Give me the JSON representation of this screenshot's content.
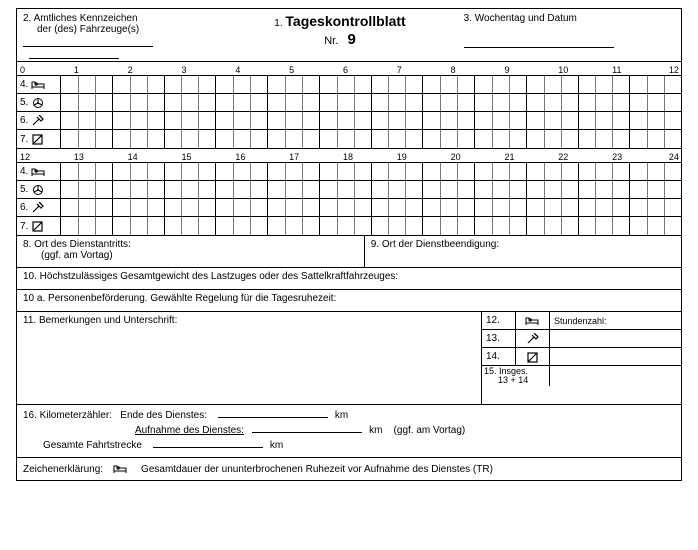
{
  "header": {
    "field2_line1": "2. Amtliches Kennzeichen",
    "field2_line2": "der (des) Fahrzeuge(s)",
    "title_prefix": "1.",
    "title": "Tageskontrollblatt",
    "nr_label": "Nr.",
    "nr_value": "9",
    "field3": "3. Wochentag und Datum"
  },
  "scale_top": [
    "0",
    "1",
    "2",
    "3",
    "4",
    "5",
    "6",
    "7",
    "8",
    "9",
    "10",
    "11",
    "12"
  ],
  "scale_bottom": [
    "12",
    "13",
    "14",
    "15",
    "16",
    "17",
    "18",
    "19",
    "20",
    "21",
    "22",
    "23",
    "24"
  ],
  "timeline_rows": [
    {
      "num": "4.",
      "icon": "bed"
    },
    {
      "num": "5.",
      "icon": "steer"
    },
    {
      "num": "6.",
      "icon": "hammer"
    },
    {
      "num": "7.",
      "icon": "box"
    }
  ],
  "fields": {
    "f8_line1": "8.  Ort des Dienstantritts:",
    "f8_line2": "(ggf. am Vortag)",
    "f9": "9. Ort der Dienstbeendigung:",
    "f10": "10.  Höchstzulässiges Gesamtgewicht des Lastzuges oder des Sattelkraftfahrzeuges:",
    "f10a": "10 a. Personenbeförderung. Gewählte Regelung für die Tagesruhezeit:",
    "f11": "11.  Bemerkungen und Unterschrift:"
  },
  "hours_table": {
    "header_label": "Stundenzahl:",
    "rows": [
      {
        "num": "12.",
        "icon": "bed"
      },
      {
        "num": "13.",
        "icon": "hammer"
      },
      {
        "num": "14.",
        "icon": "box"
      }
    ],
    "insg_line1": "15. Insges.",
    "insg_line2": "13 + 14"
  },
  "km": {
    "f16": "16.  Kilometerzähler:",
    "ende": "Ende des Dienstes:",
    "aufnahme": "Aufnahme des Dienstes:",
    "ggf": "(ggf. am Vortag)",
    "gesamt": "Gesamte Fahrtstrecke",
    "unit": "km"
  },
  "legend": {
    "label": "Zeichenerklärung:",
    "bed_text": "Gesamtdauer der ununterbrochenen Ruhezeit vor Aufnahme des Dienstes (TR)"
  },
  "style": {
    "icon_stroke": "#000",
    "minor_grid": "#777"
  }
}
